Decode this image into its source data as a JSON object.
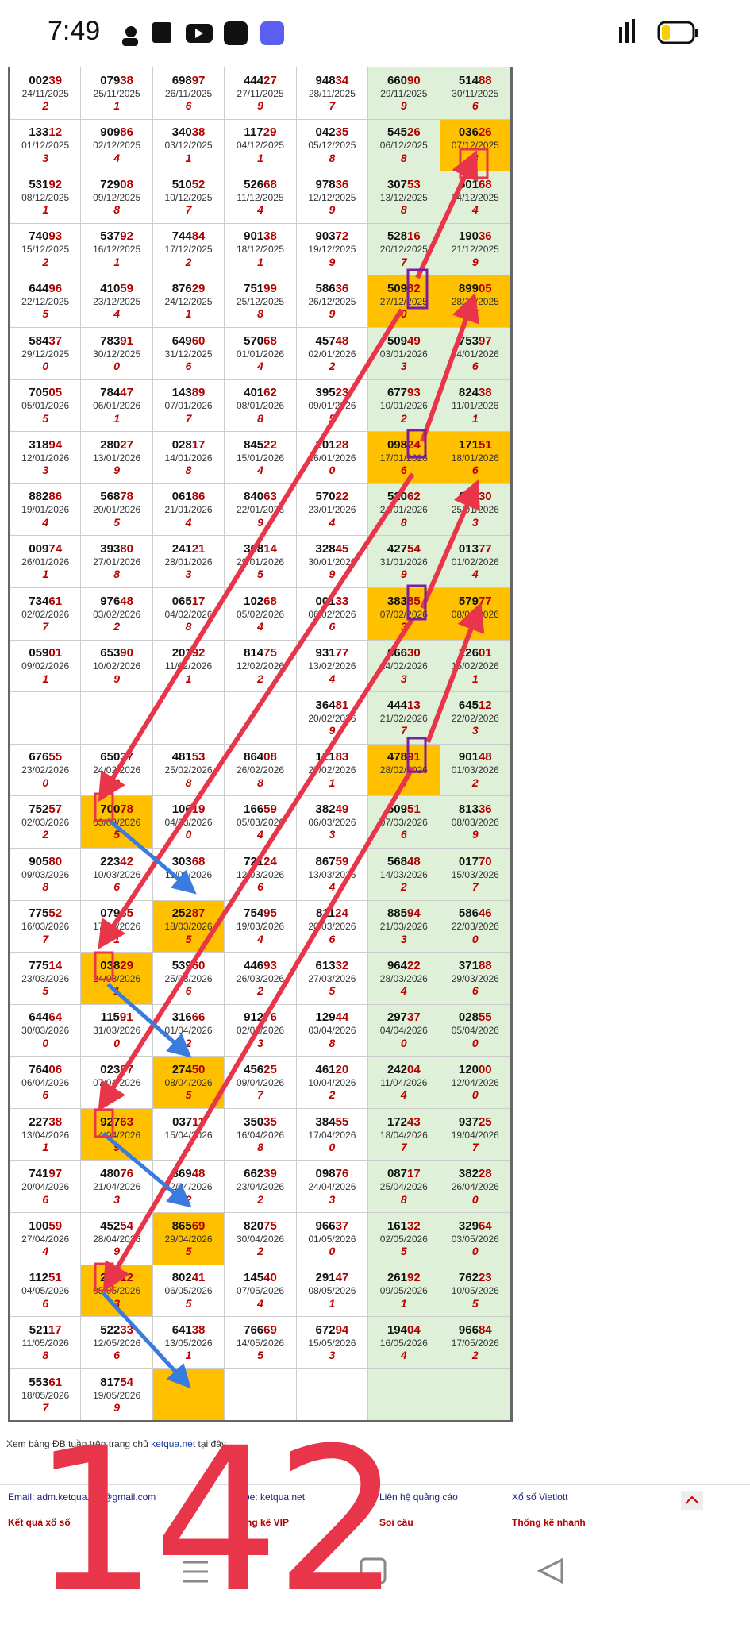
{
  "status_bar": {
    "time": "7:49"
  },
  "table": {
    "rows": [
      [
        {
          "num": "00239",
          "date": "24/11/2025",
          "digit": "2"
        },
        {
          "num": "07938",
          "date": "25/11/2025",
          "digit": "1"
        },
        {
          "num": "69897",
          "date": "26/11/2025",
          "digit": "6"
        },
        {
          "num": "44427",
          "date": "27/11/2025",
          "digit": "9"
        },
        {
          "num": "94834",
          "date": "28/11/2025",
          "digit": "7"
        },
        {
          "num": "66090",
          "date": "29/11/2025",
          "digit": "9"
        },
        {
          "num": "51488",
          "date": "30/11/2025",
          "digit": "6"
        }
      ],
      [
        {
          "num": "13312",
          "date": "01/12/2025",
          "digit": "3"
        },
        {
          "num": "90986",
          "date": "02/12/2025",
          "digit": "4"
        },
        {
          "num": "34038",
          "date": "03/12/2025",
          "digit": "1"
        },
        {
          "num": "11729",
          "date": "04/12/2025",
          "digit": "1"
        },
        {
          "num": "04235",
          "date": "05/12/2025",
          "digit": "8"
        },
        {
          "num": "54526",
          "date": "06/12/2025",
          "digit": "8"
        },
        {
          "num": "03626",
          "date": "07/12/2025",
          "digit": "8",
          "highlight": true
        }
      ],
      [
        {
          "num": "53192",
          "date": "08/12/2025",
          "digit": "1"
        },
        {
          "num": "72908",
          "date": "09/12/2025",
          "digit": "8"
        },
        {
          "num": "51052",
          "date": "10/12/2025",
          "digit": "7"
        },
        {
          "num": "52668",
          "date": "11/12/2025",
          "digit": "4"
        },
        {
          "num": "97836",
          "date": "12/12/2025",
          "digit": "9"
        },
        {
          "num": "30753",
          "date": "13/12/2025",
          "digit": "8"
        },
        {
          "num": "50168",
          "date": "14/12/2025",
          "digit": "4"
        }
      ],
      [
        {
          "num": "74093",
          "date": "15/12/2025",
          "digit": "2"
        },
        {
          "num": "53792",
          "date": "16/12/2025",
          "digit": "1"
        },
        {
          "num": "74484",
          "date": "17/12/2025",
          "digit": "2"
        },
        {
          "num": "90138",
          "date": "18/12/2025",
          "digit": "1"
        },
        {
          "num": "90372",
          "date": "19/12/2025",
          "digit": "9"
        },
        {
          "num": "52816",
          "date": "20/12/2025",
          "digit": "7"
        },
        {
          "num": "19036",
          "date": "21/12/2025",
          "digit": "9"
        }
      ],
      [
        {
          "num": "64496",
          "date": "22/12/2025",
          "digit": "5"
        },
        {
          "num": "41059",
          "date": "23/12/2025",
          "digit": "4"
        },
        {
          "num": "87629",
          "date": "24/12/2025",
          "digit": "1"
        },
        {
          "num": "75199",
          "date": "25/12/2025",
          "digit": "8"
        },
        {
          "num": "58636",
          "date": "26/12/2025",
          "digit": "9"
        },
        {
          "num": "50982",
          "date": "27/12/2025",
          "digit": "0",
          "highlight": true
        },
        {
          "num": "89905",
          "date": "28/12/2025",
          "digit": "5",
          "highlight": true
        }
      ],
      [
        {
          "num": "58437",
          "date": "29/12/2025",
          "digit": "0"
        },
        {
          "num": "78391",
          "date": "30/12/2025",
          "digit": "0"
        },
        {
          "num": "64960",
          "date": "31/12/2025",
          "digit": "6"
        },
        {
          "num": "57068",
          "date": "01/01/2026",
          "digit": "4"
        },
        {
          "num": "45748",
          "date": "02/01/2026",
          "digit": "2"
        },
        {
          "num": "50949",
          "date": "03/01/2026",
          "digit": "3"
        },
        {
          "num": "75397",
          "date": "04/01/2026",
          "digit": "6"
        }
      ],
      [
        {
          "num": "70505",
          "date": "05/01/2026",
          "digit": "5"
        },
        {
          "num": "78447",
          "date": "06/01/2026",
          "digit": "1"
        },
        {
          "num": "14389",
          "date": "07/01/2026",
          "digit": "7"
        },
        {
          "num": "40162",
          "date": "08/01/2026",
          "digit": "8"
        },
        {
          "num": "39523",
          "date": "09/01/2026",
          "digit": "5"
        },
        {
          "num": "67793",
          "date": "10/01/2026",
          "digit": "2"
        },
        {
          "num": "82438",
          "date": "11/01/2026",
          "digit": "1"
        }
      ],
      [
        {
          "num": "31894",
          "date": "12/01/2026",
          "digit": "3"
        },
        {
          "num": "28027",
          "date": "13/01/2026",
          "digit": "9"
        },
        {
          "num": "02817",
          "date": "14/01/2026",
          "digit": "8"
        },
        {
          "num": "84522",
          "date": "15/01/2026",
          "digit": "4"
        },
        {
          "num": "20128",
          "date": "16/01/2026",
          "digit": "0"
        },
        {
          "num": "09824",
          "date": "17/01/2026",
          "digit": "6",
          "highlight": true
        },
        {
          "num": "17151",
          "date": "18/01/2026",
          "digit": "6",
          "highlight": true
        }
      ],
      [
        {
          "num": "88286",
          "date": "19/01/2026",
          "digit": "4"
        },
        {
          "num": "56878",
          "date": "20/01/2026",
          "digit": "5"
        },
        {
          "num": "06186",
          "date": "21/01/2026",
          "digit": "4"
        },
        {
          "num": "84063",
          "date": "22/01/2026",
          "digit": "9"
        },
        {
          "num": "57022",
          "date": "23/01/2026",
          "digit": "4"
        },
        {
          "num": "52062",
          "date": "24/01/2026",
          "digit": "8"
        },
        {
          "num": "08530",
          "date": "25/01/2026",
          "digit": "3"
        }
      ],
      [
        {
          "num": "00974",
          "date": "26/01/2026",
          "digit": "1"
        },
        {
          "num": "39380",
          "date": "27/01/2026",
          "digit": "8"
        },
        {
          "num": "24121",
          "date": "28/01/2026",
          "digit": "3"
        },
        {
          "num": "30814",
          "date": "29/01/2026",
          "digit": "5"
        },
        {
          "num": "32845",
          "date": "30/01/2026",
          "digit": "9"
        },
        {
          "num": "42754",
          "date": "31/01/2026",
          "digit": "9"
        },
        {
          "num": "01377",
          "date": "01/02/2026",
          "digit": "4"
        }
      ],
      [
        {
          "num": "73461",
          "date": "02/02/2026",
          "digit": "7"
        },
        {
          "num": "97648",
          "date": "03/02/2026",
          "digit": "2"
        },
        {
          "num": "06517",
          "date": "04/02/2026",
          "digit": "8"
        },
        {
          "num": "10268",
          "date": "05/02/2026",
          "digit": "4"
        },
        {
          "num": "00133",
          "date": "06/02/2026",
          "digit": "6"
        },
        {
          "num": "38385",
          "date": "07/02/2026",
          "digit": "3",
          "highlight": true
        },
        {
          "num": "57977",
          "date": "08/02/2026",
          "digit": "4",
          "highlight": true
        }
      ],
      [
        {
          "num": "05901",
          "date": "09/02/2026",
          "digit": "1"
        },
        {
          "num": "65390",
          "date": "10/02/2026",
          "digit": "9"
        },
        {
          "num": "20192",
          "date": "11/02/2026",
          "digit": "1"
        },
        {
          "num": "81475",
          "date": "12/02/2026",
          "digit": "2"
        },
        {
          "num": "93177",
          "date": "13/02/2026",
          "digit": "4"
        },
        {
          "num": "66630",
          "date": "14/02/2026",
          "digit": "3"
        },
        {
          "num": "22601",
          "date": "15/02/2026",
          "digit": "1"
        }
      ],
      [
        null,
        null,
        null,
        null,
        {
          "num": "36481",
          "date": "20/02/2026",
          "digit": "9"
        },
        {
          "num": "44413",
          "date": "21/02/2026",
          "digit": "7"
        },
        {
          "num": "64512",
          "date": "22/02/2026",
          "digit": "3"
        }
      ],
      [
        {
          "num": "67655",
          "date": "23/02/2026",
          "digit": "0"
        },
        {
          "num": "65037",
          "date": "24/02/2026",
          "digit": "0"
        },
        {
          "num": "48153",
          "date": "25/02/2026",
          "digit": "8"
        },
        {
          "num": "86408",
          "date": "26/02/2026",
          "digit": "8"
        },
        {
          "num": "12183",
          "date": "27/02/2026",
          "digit": "1"
        },
        {
          "num": "47891",
          "date": "28/02/2026",
          "digit": "0",
          "highlight": true
        },
        {
          "num": "90148",
          "date": "01/03/2026",
          "digit": "2"
        }
      ],
      [
        {
          "num": "75257",
          "date": "02/03/2026",
          "digit": "2"
        },
        {
          "num": "70078",
          "date": "03/03/2026",
          "digit": "5",
          "highlight": true
        },
        {
          "num": "10619",
          "date": "04/03/2026",
          "digit": "0"
        },
        {
          "num": "16659",
          "date": "05/03/2026",
          "digit": "4"
        },
        {
          "num": "38249",
          "date": "06/03/2026",
          "digit": "3"
        },
        {
          "num": "50951",
          "date": "07/03/2026",
          "digit": "6"
        },
        {
          "num": "81336",
          "date": "08/03/2026",
          "digit": "9"
        }
      ],
      [
        {
          "num": "90580",
          "date": "09/03/2026",
          "digit": "8"
        },
        {
          "num": "22342",
          "date": "10/03/2026",
          "digit": "6"
        },
        {
          "num": "30368",
          "date": "11/03/2026",
          "digit": "4"
        },
        {
          "num": "72124",
          "date": "12/03/2026",
          "digit": "6"
        },
        {
          "num": "86759",
          "date": "13/03/2026",
          "digit": "4"
        },
        {
          "num": "56848",
          "date": "14/03/2026",
          "digit": "2"
        },
        {
          "num": "01770",
          "date": "15/03/2026",
          "digit": "7"
        }
      ],
      [
        {
          "num": "77552",
          "date": "16/03/2026",
          "digit": "7"
        },
        {
          "num": "07965",
          "date": "17/03/2026",
          "digit": "1"
        },
        {
          "num": "25287",
          "date": "18/03/2026",
          "digit": "5",
          "highlight": true
        },
        {
          "num": "75495",
          "date": "19/03/2026",
          "digit": "4"
        },
        {
          "num": "81124",
          "date": "20/03/2026",
          "digit": "6"
        },
        {
          "num": "88594",
          "date": "21/03/2026",
          "digit": "3"
        },
        {
          "num": "58646",
          "date": "22/03/2026",
          "digit": "0"
        }
      ],
      [
        {
          "num": "77514",
          "date": "23/03/2026",
          "digit": "5"
        },
        {
          "num": "03829",
          "date": "24/03/2026",
          "digit": "1",
          "highlight": true
        },
        {
          "num": "53960",
          "date": "25/03/2026",
          "digit": "6"
        },
        {
          "num": "44693",
          "date": "26/03/2026",
          "digit": "2"
        },
        {
          "num": "61332",
          "date": "27/03/2026",
          "digit": "5"
        },
        {
          "num": "96422",
          "date": "28/03/2026",
          "digit": "4"
        },
        {
          "num": "37188",
          "date": "29/03/2026",
          "digit": "6"
        }
      ],
      [
        {
          "num": "64464",
          "date": "30/03/2026",
          "digit": "0"
        },
        {
          "num": "11591",
          "date": "31/03/2026",
          "digit": "0"
        },
        {
          "num": "31666",
          "date": "01/04/2026",
          "digit": "2"
        },
        {
          "num": "91276",
          "date": "02/04/2026",
          "digit": "3"
        },
        {
          "num": "12944",
          "date": "03/04/2026",
          "digit": "8"
        },
        {
          "num": "29737",
          "date": "04/04/2026",
          "digit": "0"
        },
        {
          "num": "02855",
          "date": "05/04/2026",
          "digit": "0"
        }
      ],
      [
        {
          "num": "76406",
          "date": "06/04/2026",
          "digit": "6"
        },
        {
          "num": "02387",
          "date": "07/04/2026",
          "digit": "5"
        },
        {
          "num": "27450",
          "date": "08/04/2026",
          "digit": "5",
          "highlight": true
        },
        {
          "num": "45625",
          "date": "09/04/2026",
          "digit": "7"
        },
        {
          "num": "46120",
          "date": "10/04/2026",
          "digit": "2"
        },
        {
          "num": "24204",
          "date": "11/04/2026",
          "digit": "4"
        },
        {
          "num": "12000",
          "date": "12/04/2026",
          "digit": "0"
        }
      ],
      [
        {
          "num": "22738",
          "date": "13/04/2026",
          "digit": "1"
        },
        {
          "num": "92763",
          "date": "14/04/2026",
          "digit": "9",
          "highlight": true
        },
        {
          "num": "03711",
          "date": "15/04/2026",
          "digit": "2"
        },
        {
          "num": "35035",
          "date": "16/04/2026",
          "digit": "8"
        },
        {
          "num": "38455",
          "date": "17/04/2026",
          "digit": "0"
        },
        {
          "num": "17243",
          "date": "18/04/2026",
          "digit": "7"
        },
        {
          "num": "93725",
          "date": "19/04/2026",
          "digit": "7"
        }
      ],
      [
        {
          "num": "74197",
          "date": "20/04/2026",
          "digit": "6"
        },
        {
          "num": "48076",
          "date": "21/04/2026",
          "digit": "3"
        },
        {
          "num": "36948",
          "date": "22/04/2026",
          "digit": "2"
        },
        {
          "num": "66239",
          "date": "23/04/2026",
          "digit": "2"
        },
        {
          "num": "09876",
          "date": "24/04/2026",
          "digit": "3"
        },
        {
          "num": "08717",
          "date": "25/04/2026",
          "digit": "8"
        },
        {
          "num": "38228",
          "date": "26/04/2026",
          "digit": "0"
        }
      ],
      [
        {
          "num": "10059",
          "date": "27/04/2026",
          "digit": "4"
        },
        {
          "num": "45254",
          "date": "28/04/2026",
          "digit": "9"
        },
        {
          "num": "86569",
          "date": "29/04/2026",
          "digit": "5",
          "highlight": true
        },
        {
          "num": "82075",
          "date": "30/04/2026",
          "digit": "2"
        },
        {
          "num": "96637",
          "date": "01/05/2026",
          "digit": "0"
        },
        {
          "num": "16132",
          "date": "02/05/2026",
          "digit": "5"
        },
        {
          "num": "32964",
          "date": "03/05/2026",
          "digit": "0"
        }
      ],
      [
        {
          "num": "11251",
          "date": "04/05/2026",
          "digit": "6"
        },
        {
          "num": "22512",
          "date": "05/05/2026",
          "digit": "3",
          "highlight": true
        },
        {
          "num": "80241",
          "date": "06/05/2026",
          "digit": "5"
        },
        {
          "num": "14540",
          "date": "07/05/2026",
          "digit": "4"
        },
        {
          "num": "29147",
          "date": "08/05/2026",
          "digit": "1"
        },
        {
          "num": "26192",
          "date": "09/05/2026",
          "digit": "1"
        },
        {
          "num": "76223",
          "date": "10/05/2026",
          "digit": "5"
        }
      ],
      [
        {
          "num": "52117",
          "date": "11/05/2026",
          "digit": "8"
        },
        {
          "num": "52233",
          "date": "12/05/2026",
          "digit": "6"
        },
        {
          "num": "64138",
          "date": "13/05/2026",
          "digit": "1"
        },
        {
          "num": "76669",
          "date": "14/05/2026",
          "digit": "5"
        },
        {
          "num": "67294",
          "date": "15/05/2026",
          "digit": "3"
        },
        {
          "num": "19404",
          "date": "16/05/2026",
          "digit": "4"
        },
        {
          "num": "96684",
          "date": "17/05/2026",
          "digit": "2"
        }
      ],
      [
        {
          "num": "55361",
          "date": "18/05/2026",
          "digit": "7"
        },
        {
          "num": "81754",
          "date": "19/05/2026",
          "digit": "9"
        },
        {
          "highlight": true
        },
        null,
        null,
        null,
        null
      ]
    ]
  },
  "note": {
    "text": "Xem bảng ĐB tuần trên trang chủ",
    "link": "ketqua.net",
    "after": "tại đây"
  },
  "footer": {
    "links": [
      "Email: adm.ketqua.net@gmail.com",
      "Skype: ketqua.net",
      "Liên hệ quảng cáo",
      "Xổ số Vietlott"
    ],
    "links2": [
      "Kết quả xổ số",
      "Thống kê VIP",
      "Soi cầu",
      "Thống kê nhanh"
    ]
  },
  "overlay": {
    "text": "142"
  }
}
